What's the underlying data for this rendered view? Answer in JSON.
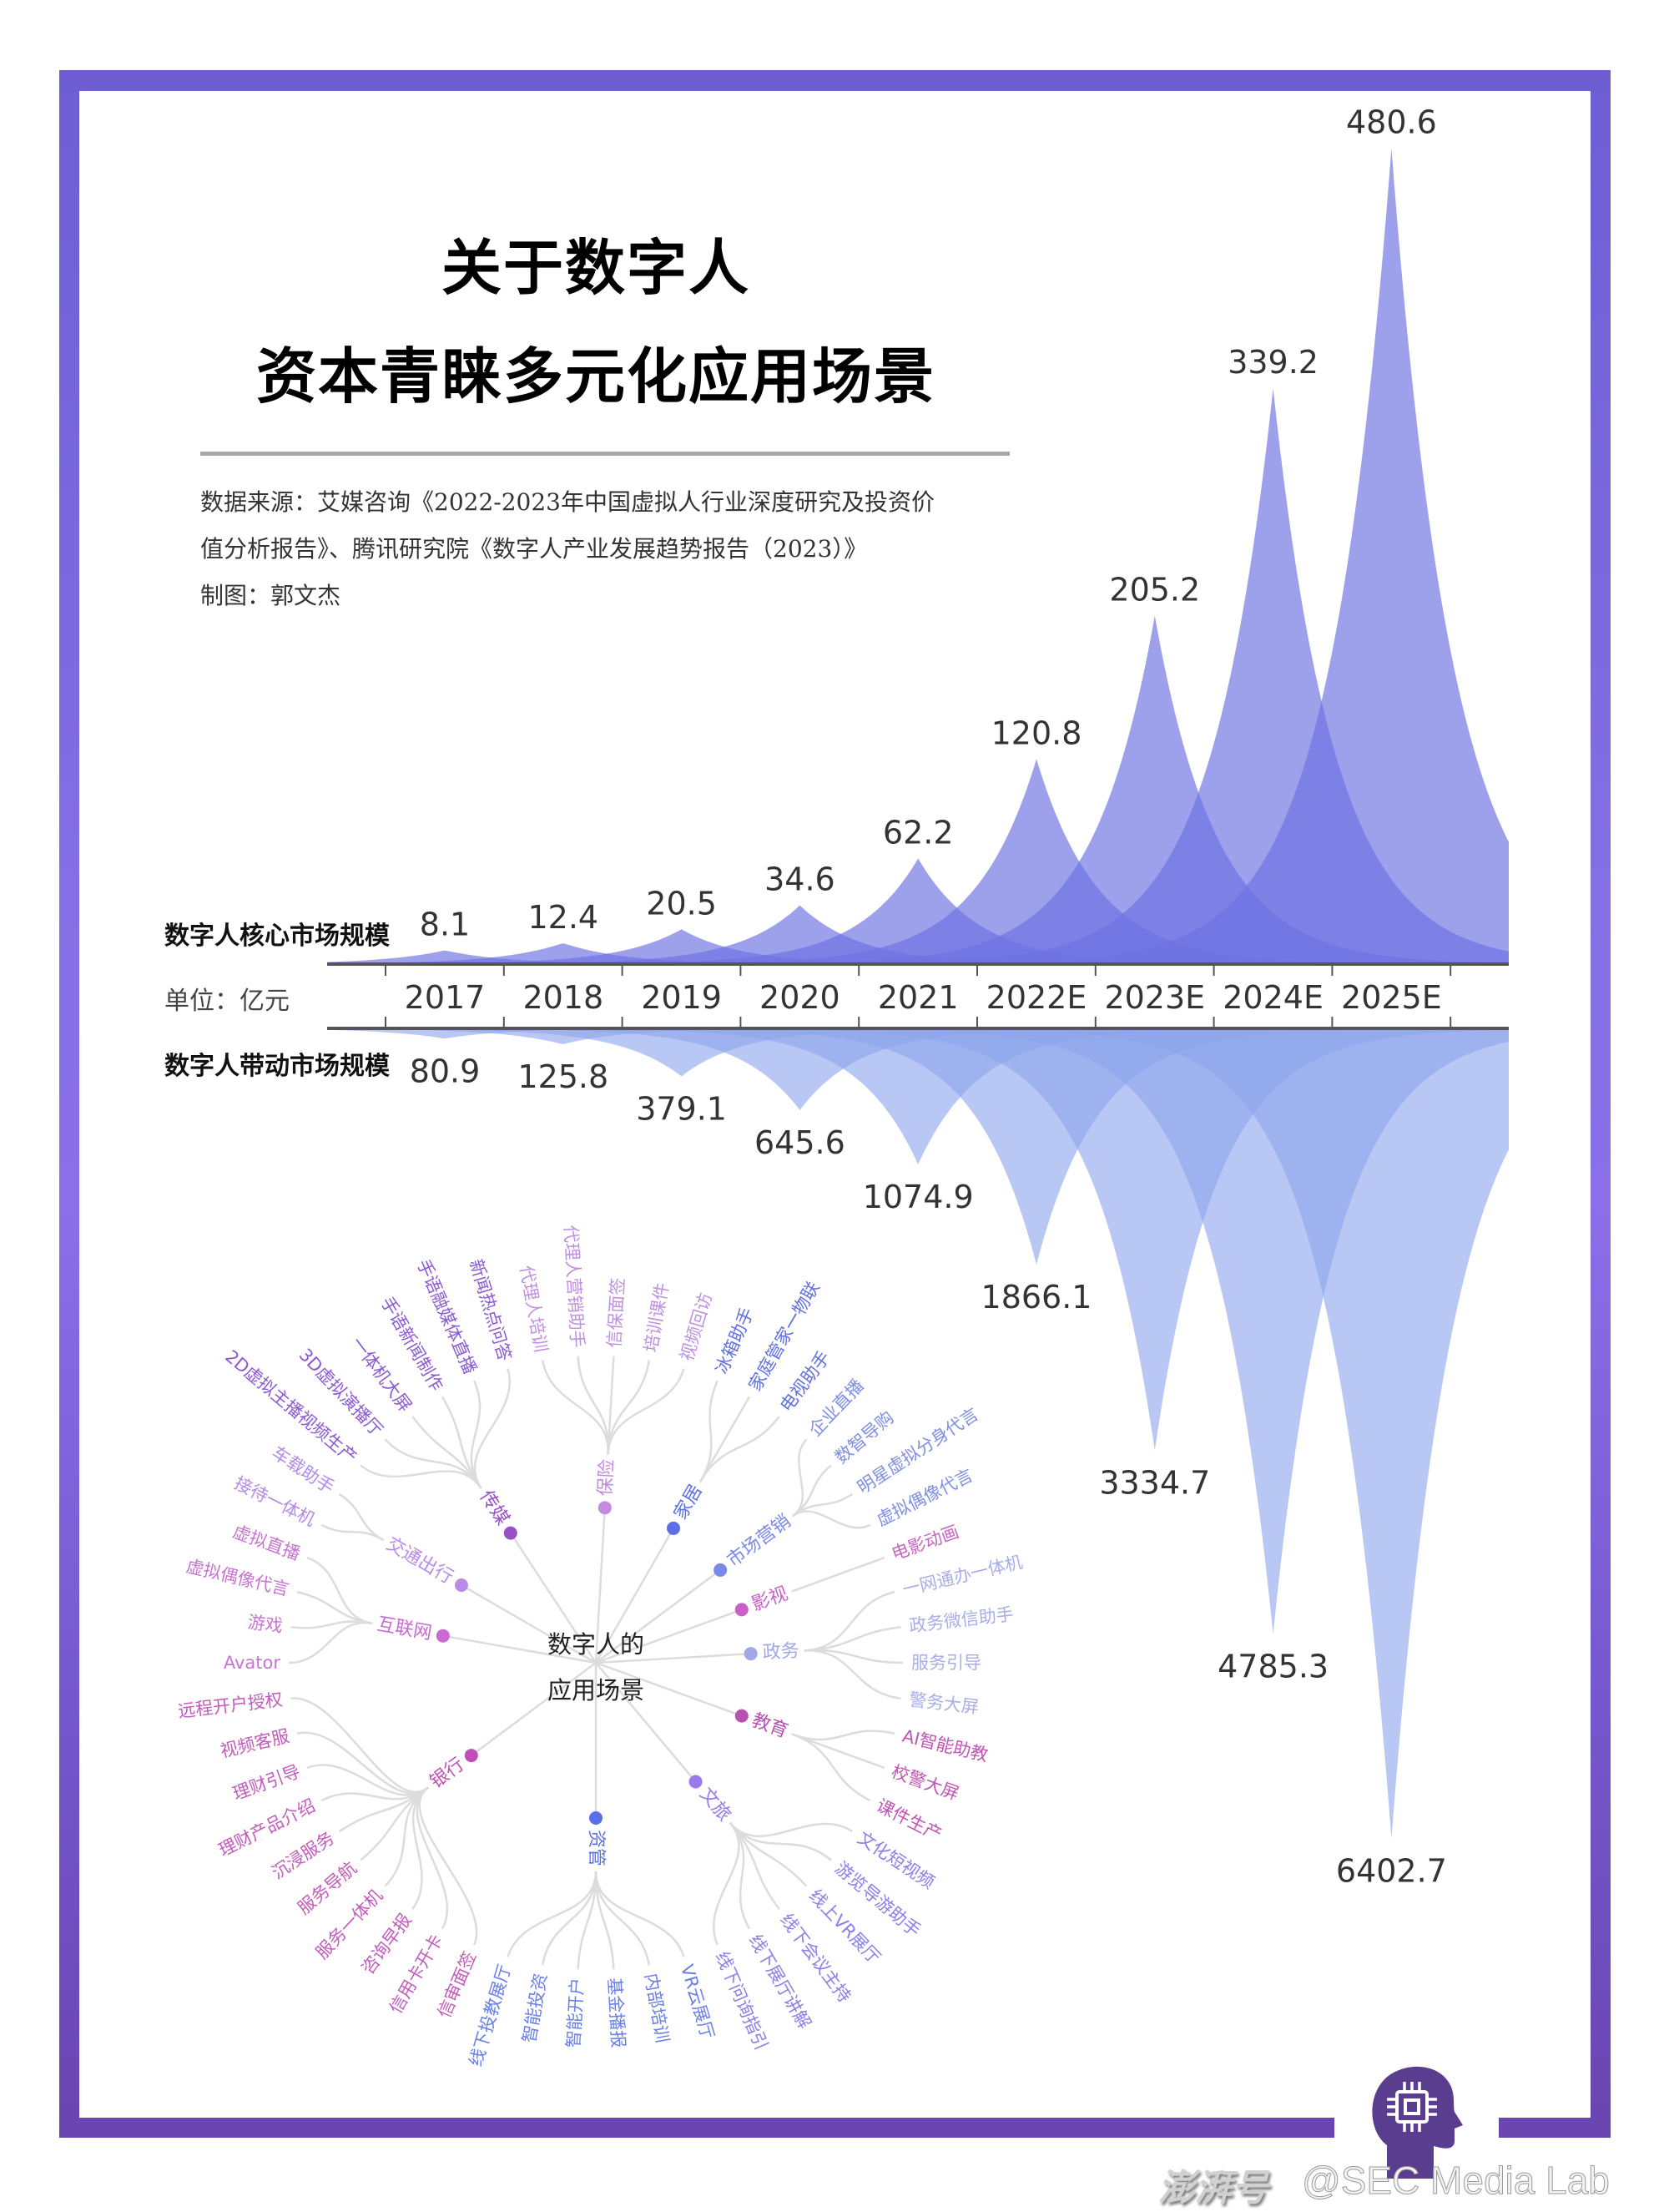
{
  "title": {
    "line1": "关于数字人",
    "line2": "资本青睐多元化应用场景"
  },
  "source": {
    "line1": "数据来源：艾媒咨询《2022-2023年中国虚拟人行业深度研究及投资价",
    "line2": "值分析报告》、腾讯研究院《数字人产业发展趋势报告（2023）》",
    "credit": "制图：郭文杰"
  },
  "chart_data": {
    "type": "area",
    "categories": [
      "2017",
      "2018",
      "2019",
      "2020",
      "2021",
      "2022E",
      "2023E",
      "2024E",
      "2025E"
    ],
    "unit_label": "单位：亿元",
    "series": [
      {
        "name": "数字人核心市场规模",
        "values": [
          8.1,
          12.4,
          20.5,
          34.6,
          62.2,
          120.8,
          205.2,
          339.2,
          480.6
        ],
        "direction": "up",
        "color": "#6e73e1"
      },
      {
        "name": "数字人带动市场规模",
        "values": [
          80.9,
          125.8,
          379.1,
          645.6,
          1074.9,
          1866.1,
          3334.7,
          4785.3,
          6402.7
        ],
        "direction": "down",
        "color": "#8ca5eb"
      }
    ],
    "grid": false
  },
  "tree": {
    "root_line1": "数字人的",
    "root_line2": "应用场景",
    "link_color": "#dcdcdc",
    "categories": [
      {
        "name": "互联网",
        "color": "#c86ad0",
        "leaf_color": "#c874d2",
        "leaves": [
          "Avator",
          "游戏",
          "虚拟偶像代言",
          "虚拟直播"
        ]
      },
      {
        "name": "交通出行",
        "color": "#b98ae8",
        "leaf_color": "#b58ae6",
        "leaves": [
          "接待一体机",
          "车载助手"
        ]
      },
      {
        "name": "传媒",
        "color": "#9650c8",
        "leaf_color": "#8c5ad2",
        "leaves": [
          "2D虚拟主播视频生产",
          "3D虚拟演播厅",
          "一体机大屏",
          "手语新闻制作",
          "手语融媒体直播",
          "新闻热点问答"
        ]
      },
      {
        "name": "保险",
        "color": "#c58ae0",
        "leaf_color": "#c090e0",
        "leaves": [
          "代理人培训",
          "代理人营销助手",
          "信保面签",
          "培训课件",
          "视频回访"
        ]
      },
      {
        "name": "家居",
        "color": "#5b6fe6",
        "leaf_color": "#6070e0",
        "leaves": [
          "冰箱助手",
          "家庭管家一物联",
          "电视助手"
        ]
      },
      {
        "name": "市场营销",
        "color": "#7b8ae6",
        "leaf_color": "#7f8fe2",
        "leaves": [
          "企业直播",
          "数智导购",
          "明星虚拟分身代言",
          "虚拟偶像代言"
        ]
      },
      {
        "name": "影视",
        "color": "#c860c8",
        "leaf_color": "#c864c4",
        "leaves": [
          "电影动画"
        ]
      },
      {
        "name": "政务",
        "color": "#a0a8e6",
        "leaf_color": "#a8aee8",
        "leaves": [
          "一网通办一体机",
          "政务微信助手",
          "服务引导",
          "警务大屏"
        ]
      },
      {
        "name": "教育",
        "color": "#b850b0",
        "leaf_color": "#c056b4",
        "leaves": [
          "AI智能助教",
          "校警大屏",
          "课件生产"
        ]
      },
      {
        "name": "文旅",
        "color": "#9a7ae8",
        "leaf_color": "#8a80e8",
        "leaves": [
          "文化短视频",
          "游览导游助手",
          "线上VR展厅",
          "线下会议主持",
          "线下展厅讲解",
          "线下问询指引"
        ]
      },
      {
        "name": "资管",
        "color": "#5b6fe6",
        "leaf_color": "#6a80e8",
        "leaves": [
          "VR云展厅",
          "内部培训",
          "基金播报",
          "智能开户",
          "智能投资",
          "线下投教展厅"
        ]
      },
      {
        "name": "银行",
        "color": "#c050b8",
        "leaf_color": "#c25cbc",
        "leaves": [
          "信审面签",
          "信用卡开卡",
          "咨询早报",
          "服务一体机",
          "服务导航",
          "沉浸服务",
          "理财产品介绍",
          "理财引导",
          "视频客服",
          "远程开户授权"
        ]
      }
    ]
  },
  "logo": {
    "icon": "head-chip-icon",
    "color": "#5a3d8e"
  },
  "watermark": {
    "platform": "澎湃号",
    "account": "@SEC Media Lab"
  },
  "frame_color": "#7a62dc"
}
